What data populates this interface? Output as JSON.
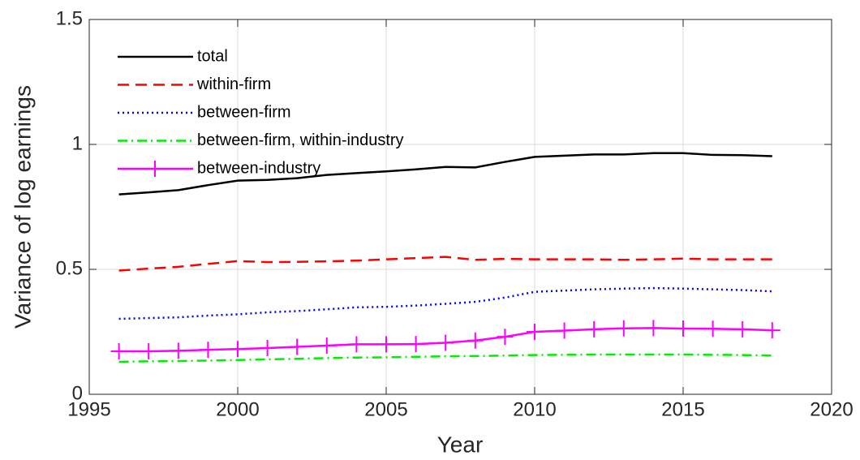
{
  "chart_data": {
    "type": "line",
    "xlabel": "Year",
    "ylabel": "Variance of log earnings",
    "x": [
      1996,
      1997,
      1998,
      1999,
      2000,
      2001,
      2002,
      2003,
      2004,
      2005,
      2006,
      2007,
      2008,
      2009,
      2010,
      2011,
      2012,
      2013,
      2014,
      2015,
      2016,
      2017,
      2018
    ],
    "series": [
      {
        "name": "total",
        "color": "#000000",
        "line_style": "solid",
        "values": [
          0.8,
          0.808,
          0.817,
          0.837,
          0.855,
          0.858,
          0.865,
          0.878,
          0.885,
          0.892,
          0.9,
          0.91,
          0.908,
          0.93,
          0.95,
          0.955,
          0.96,
          0.96,
          0.965,
          0.965,
          0.958,
          0.957,
          0.953
        ]
      },
      {
        "name": "within-firm",
        "color": "#ff0000",
        "line_style": "dashed",
        "values": [
          0.495,
          0.503,
          0.51,
          0.522,
          0.533,
          0.529,
          0.53,
          0.532,
          0.535,
          0.54,
          0.545,
          0.55,
          0.538,
          0.542,
          0.54,
          0.54,
          0.54,
          0.538,
          0.54,
          0.543,
          0.54,
          0.54,
          0.54
        ]
      },
      {
        "name": "between-firm",
        "color": "#0000ff",
        "line_style": "dotted",
        "values": [
          0.302,
          0.305,
          0.308,
          0.315,
          0.32,
          0.328,
          0.333,
          0.34,
          0.348,
          0.35,
          0.355,
          0.362,
          0.37,
          0.387,
          0.41,
          0.415,
          0.42,
          0.423,
          0.425,
          0.423,
          0.42,
          0.417,
          0.412
        ]
      },
      {
        "name": "between-firm, within-industry",
        "color": "#00ee00",
        "line_style": "dashdot",
        "values": [
          0.13,
          0.132,
          0.133,
          0.135,
          0.137,
          0.14,
          0.142,
          0.145,
          0.147,
          0.148,
          0.15,
          0.152,
          0.153,
          0.155,
          0.157,
          0.158,
          0.159,
          0.159,
          0.159,
          0.159,
          0.158,
          0.157,
          0.155
        ]
      },
      {
        "name": "between-industry",
        "color": "#ff00ff",
        "line_style": "solid",
        "marker": "+",
        "values": [
          0.172,
          0.172,
          0.174,
          0.178,
          0.181,
          0.185,
          0.19,
          0.195,
          0.2,
          0.2,
          0.201,
          0.206,
          0.215,
          0.23,
          0.25,
          0.255,
          0.26,
          0.264,
          0.265,
          0.263,
          0.262,
          0.26,
          0.256
        ]
      }
    ],
    "xlim": [
      1995,
      2020
    ],
    "xticks": [
      1995,
      2000,
      2005,
      2010,
      2015,
      2020
    ],
    "ylim": [
      0,
      1.5
    ],
    "yticks": [
      0,
      0.5,
      1,
      1.5
    ],
    "grid": true,
    "legend": "upper-left"
  }
}
